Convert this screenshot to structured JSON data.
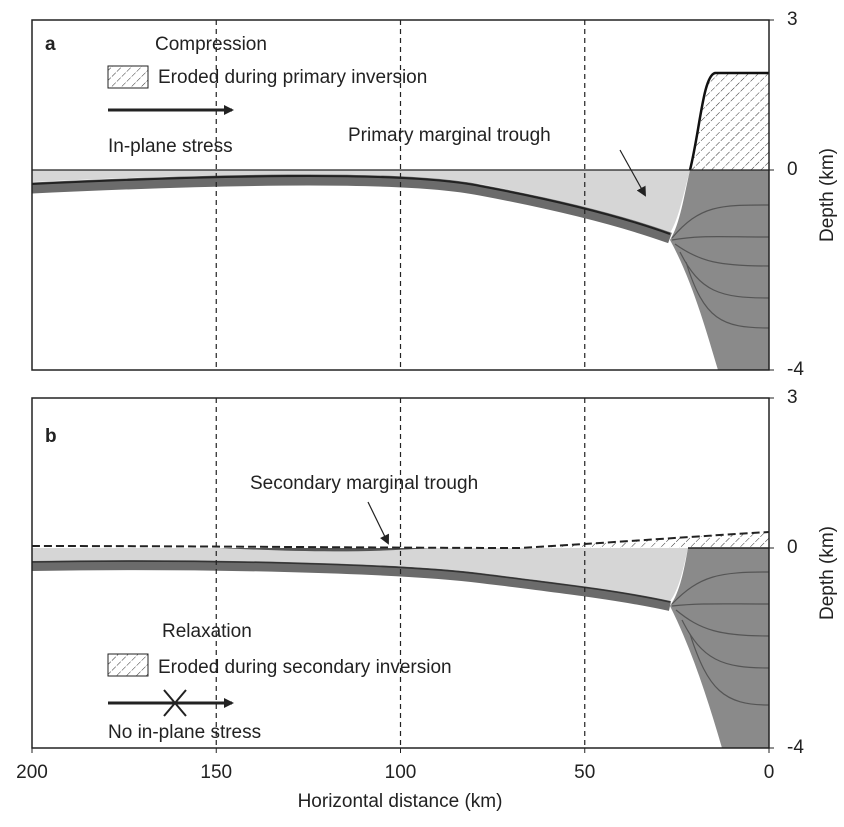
{
  "panels": [
    {
      "label": "a",
      "legend_title": "Compression",
      "legend_hatch": "Eroded during primary inversion",
      "arrow_label": "In-plane stress",
      "annotation": "Primary marginal trough",
      "yticks": [
        3,
        0,
        -4
      ],
      "ylim": [
        -4,
        3
      ]
    },
    {
      "label": "b",
      "legend_title": "Relaxation",
      "legend_hatch": "Eroded during secondary inversion",
      "arrow_label": "No in-plane stress",
      "annotation": "Secondary marginal trough",
      "yticks": [
        3,
        0,
        -4
      ],
      "ylim": [
        -4,
        3
      ]
    }
  ],
  "y_label": "Depth (km)",
  "x_label": "Horizontal distance (km)",
  "xlim": [
    200,
    0
  ],
  "xticks": [
    200,
    150,
    100,
    50,
    0
  ]
}
